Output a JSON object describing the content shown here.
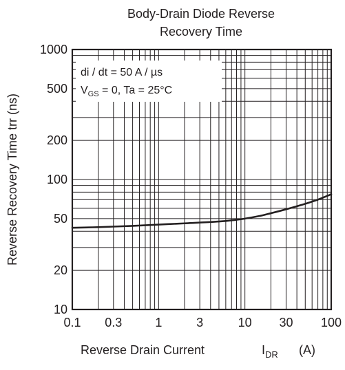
{
  "chart_data": {
    "type": "line",
    "title_lines": [
      "Body-Drain Diode Reverse",
      "Recovery Time"
    ],
    "xlabel": {
      "main": "Reverse Drain Current",
      "symbol": "I",
      "subscript": "DR",
      "unit": "(A)"
    },
    "ylabel": "Reverse Recovery Time  trr  (ns)",
    "x_scale": "log",
    "y_scale": "log",
    "xlim": [
      0.1,
      100
    ],
    "ylim": [
      10,
      1000
    ],
    "x_ticks": [
      {
        "value": 0.1,
        "label": "0.1"
      },
      {
        "value": 0.3,
        "label": "0.3"
      },
      {
        "value": 1,
        "label": "1"
      },
      {
        "value": 3,
        "label": "3"
      },
      {
        "value": 10,
        "label": "10"
      },
      {
        "value": 30,
        "label": "30"
      },
      {
        "value": 100,
        "label": "100"
      }
    ],
    "y_ticks": [
      {
        "value": 10,
        "label": "10"
      },
      {
        "value": 20,
        "label": "20"
      },
      {
        "value": 50,
        "label": "50"
      },
      {
        "value": 100,
        "label": "100"
      },
      {
        "value": 200,
        "label": "200"
      },
      {
        "value": 500,
        "label": "500"
      },
      {
        "value": 1000,
        "label": "1000"
      }
    ],
    "grid": true,
    "conditions": {
      "line1": "di / dt = 50 A / µs",
      "line2_symbol": "V",
      "line2_sub": "GS",
      "line2_rest": " = 0, Ta = 25°C"
    },
    "series": [
      {
        "x": [
          0.1,
          0.2,
          0.5,
          1,
          2,
          5,
          8,
          10,
          15,
          20,
          30,
          50,
          70,
          100
        ],
        "y": [
          42.5,
          43,
          44,
          45,
          46,
          47.5,
          49,
          50,
          52.5,
          55,
          59,
          65,
          70,
          77
        ]
      }
    ],
    "colors": {
      "line": "#231f20",
      "grid": "#231f20",
      "background": "#ffffff"
    }
  }
}
